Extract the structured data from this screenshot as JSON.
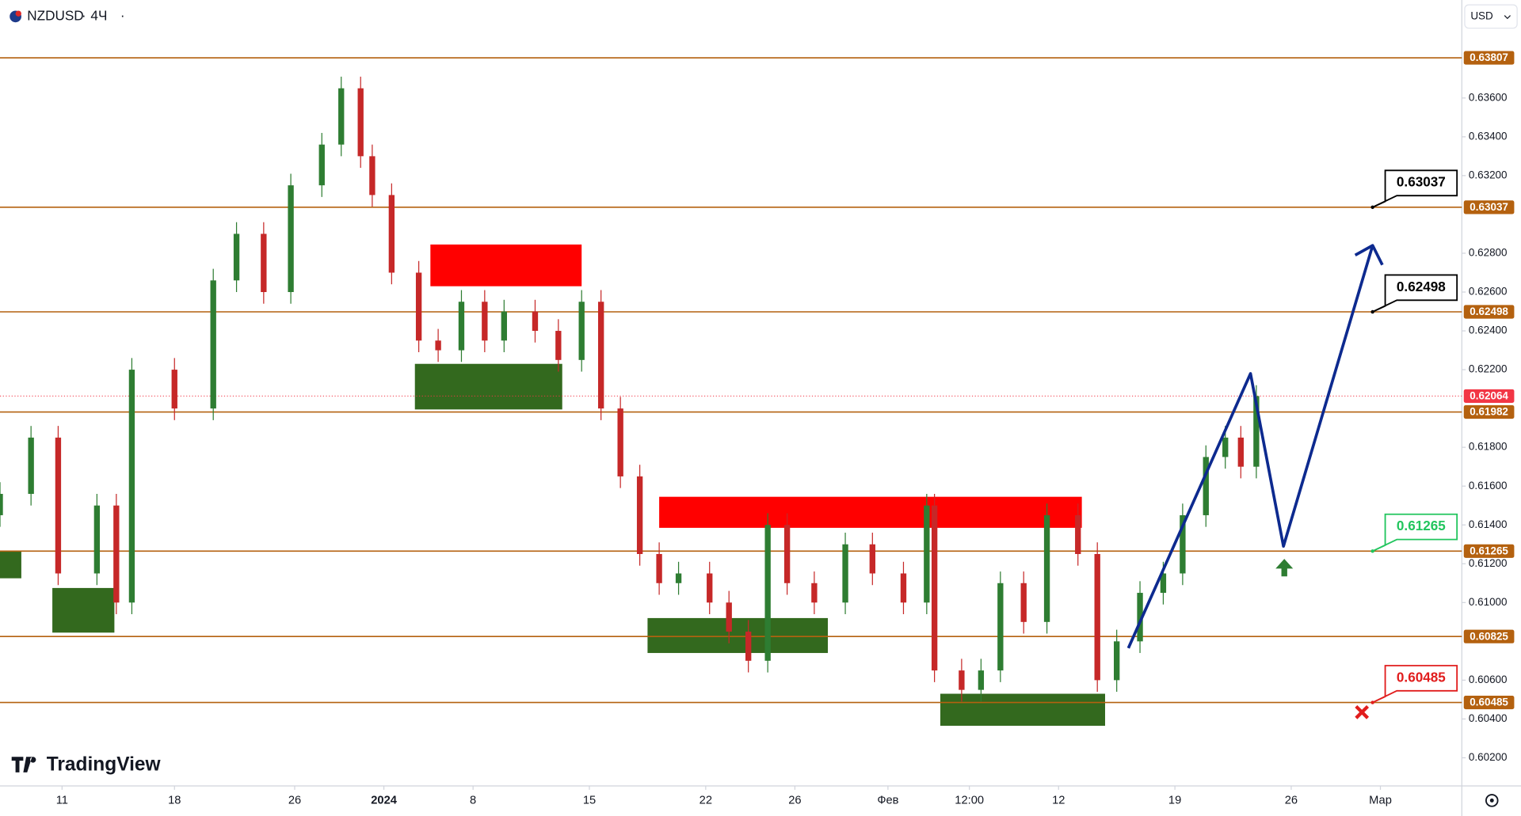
{
  "chart_data": {
    "type": "candlestick",
    "title": "NZDUSD",
    "interval": "4Ч",
    "currency": "USD",
    "brand": "TradingView",
    "xlim": [
      0,
      377
    ],
    "ylim": [
      0.60055,
      0.64105
    ],
    "xticks": [
      {
        "value": 16,
        "label": "11"
      },
      {
        "value": 45,
        "label": "18"
      },
      {
        "value": 76,
        "label": "26"
      },
      {
        "value": 99,
        "label": "2024"
      },
      {
        "value": 122,
        "label": "8"
      },
      {
        "value": 152,
        "label": "15"
      },
      {
        "value": 182,
        "label": "22"
      },
      {
        "value": 205,
        "label": "26"
      },
      {
        "value": 229,
        "label": "Фев"
      },
      {
        "value": 250,
        "label": "12:00"
      },
      {
        "value": 273,
        "label": "12"
      },
      {
        "value": 303,
        "label": "19"
      },
      {
        "value": 333,
        "label": "26"
      },
      {
        "value": 356,
        "label": "Мар"
      }
    ],
    "yticks": [
      {
        "value": 0.636,
        "label": "0.63600"
      },
      {
        "value": 0.634,
        "label": "0.63400"
      },
      {
        "value": 0.632,
        "label": "0.63200"
      },
      {
        "value": 0.628,
        "label": "0.62800"
      },
      {
        "value": 0.626,
        "label": "0.62600"
      },
      {
        "value": 0.624,
        "label": "0.62400"
      },
      {
        "value": 0.622,
        "label": "0.62200"
      },
      {
        "value": 0.618,
        "label": "0.61800"
      },
      {
        "value": 0.616,
        "label": "0.61600"
      },
      {
        "value": 0.614,
        "label": "0.61400"
      },
      {
        "value": 0.612,
        "label": "0.61200"
      },
      {
        "value": 0.61,
        "label": "0.61000"
      },
      {
        "value": 0.606,
        "label": "0.60600"
      },
      {
        "value": 0.604,
        "label": "0.60400"
      },
      {
        "value": 0.602,
        "label": "0.60200"
      }
    ],
    "x": [
      0,
      8,
      15,
      25,
      30,
      34,
      45,
      55,
      61,
      68,
      75,
      83,
      88,
      93,
      96,
      101,
      108,
      113,
      119,
      125,
      130,
      138,
      144,
      150,
      155,
      160,
      165,
      170,
      175,
      183,
      188,
      193,
      198,
      203,
      210,
      218,
      225,
      233,
      239,
      241,
      248,
      253,
      258,
      264,
      270,
      278,
      283,
      288,
      294,
      300,
      305,
      311,
      316,
      320,
      324
    ],
    "open": [
      0.6145,
      0.6156,
      0.6185,
      0.6115,
      0.615,
      0.61,
      0.622,
      0.62,
      0.6266,
      0.629,
      0.626,
      0.6315,
      0.6336,
      0.6365,
      0.633,
      0.631,
      0.627,
      0.6235,
      0.623,
      0.6255,
      0.6235,
      0.625,
      0.624,
      0.6225,
      0.6255,
      0.62,
      0.6165,
      0.6125,
      0.611,
      0.6115,
      0.61,
      0.6085,
      0.607,
      0.614,
      0.611,
      0.61,
      0.613,
      0.6115,
      0.61,
      0.615,
      0.6065,
      0.6055,
      0.6065,
      0.611,
      0.609,
      0.6145,
      0.6125,
      0.606,
      0.608,
      0.6105,
      0.6115,
      0.6145,
      0.6175,
      0.6185,
      0.617
    ],
    "high": [
      0.6162,
      0.6191,
      0.6191,
      0.6156,
      0.6156,
      0.6226,
      0.6226,
      0.6272,
      0.6296,
      0.6296,
      0.6321,
      0.6342,
      0.6371,
      0.6371,
      0.6336,
      0.6316,
      0.6276,
      0.6241,
      0.6261,
      0.6261,
      0.6256,
      0.6256,
      0.6246,
      0.6261,
      0.6261,
      0.6206,
      0.6171,
      0.6131,
      0.6121,
      0.6121,
      0.6106,
      0.6091,
      0.6146,
      0.6146,
      0.6116,
      0.6136,
      0.6136,
      0.6121,
      0.6156,
      0.6156,
      0.6071,
      0.6071,
      0.6116,
      0.6116,
      0.6151,
      0.6151,
      0.6131,
      0.6086,
      0.6111,
      0.6121,
      0.6151,
      0.6181,
      0.6191,
      0.6191,
      0.6212
    ],
    "low": [
      0.6139,
      0.615,
      0.6109,
      0.6109,
      0.6094,
      0.6094,
      0.6194,
      0.6194,
      0.626,
      0.6254,
      0.6254,
      0.6309,
      0.633,
      0.6324,
      0.6304,
      0.6264,
      0.6229,
      0.6224,
      0.6224,
      0.6229,
      0.6229,
      0.6234,
      0.6219,
      0.6219,
      0.6194,
      0.6159,
      0.6119,
      0.6104,
      0.6104,
      0.6094,
      0.6079,
      0.6064,
      0.6064,
      0.6104,
      0.6094,
      0.6094,
      0.6109,
      0.6094,
      0.6094,
      0.6059,
      0.6049,
      0.6049,
      0.6059,
      0.6084,
      0.6084,
      0.6119,
      0.6054,
      0.6054,
      0.6074,
      0.6099,
      0.6109,
      0.6139,
      0.6169,
      0.6164,
      0.6164
    ],
    "close": [
      0.6156,
      0.6185,
      0.6115,
      0.615,
      0.61,
      0.622,
      0.62,
      0.6266,
      0.629,
      0.626,
      0.6315,
      0.6336,
      0.6365,
      0.633,
      0.631,
      0.627,
      0.6235,
      0.623,
      0.6255,
      0.6235,
      0.625,
      0.624,
      0.6225,
      0.6255,
      0.62,
      0.6165,
      0.6125,
      0.611,
      0.6115,
      0.61,
      0.6085,
      0.607,
      0.614,
      0.611,
      0.61,
      0.613,
      0.6115,
      0.61,
      0.615,
      0.6065,
      0.6055,
      0.6065,
      0.611,
      0.609,
      0.6145,
      0.6125,
      0.606,
      0.608,
      0.6105,
      0.6115,
      0.6145,
      0.6175,
      0.6185,
      0.617,
      0.62064
    ],
    "up_color": "#2e7d32",
    "down_color": "#c62828",
    "levels": {
      "values": [
        0.63807,
        0.63037,
        0.62498,
        0.61982,
        0.61265,
        0.60825,
        0.60485
      ],
      "color": "#b4610f"
    },
    "current_price": {
      "value": 0.62064,
      "color": "#f23645"
    },
    "zones": [
      {
        "x": [
          111,
          150
        ],
        "y": [
          0.6263,
          0.62845
        ],
        "color": "#ff0000"
      },
      {
        "x": [
          170,
          279
        ],
        "y": [
          0.61385,
          0.61545
        ],
        "color": "#ff0000"
      },
      {
        "x": [
          107,
          145
        ],
        "y": [
          0.61995,
          0.6223
        ],
        "color": "#33691e"
      },
      {
        "x": [
          13.5,
          29.5
        ],
        "y": [
          0.60845,
          0.61075
        ],
        "color": "#33691e"
      },
      {
        "x": [
          0,
          5.5
        ],
        "y": [
          0.61125,
          0.61265
        ],
        "color": "#33691e"
      },
      {
        "x": [
          167,
          213.5
        ],
        "y": [
          0.6074,
          0.6092
        ],
        "color": "#33691e"
      },
      {
        "x": [
          242.5,
          285
        ],
        "y": [
          0.60365,
          0.6053
        ],
        "color": "#33691e"
      }
    ],
    "projection": {
      "x": [
        291,
        322.5,
        331,
        354
      ],
      "values": [
        0.60765,
        0.6218,
        0.6129,
        0.6284
      ],
      "color": "#0d2a8f"
    },
    "callouts": [
      {
        "value": 0.63037,
        "color": "#000000"
      },
      {
        "value": 0.62498,
        "color": "#000000"
      },
      {
        "value": 0.61265,
        "color": "#22c55e"
      },
      {
        "value": 0.60485,
        "color": "#e11d1d"
      }
    ]
  }
}
